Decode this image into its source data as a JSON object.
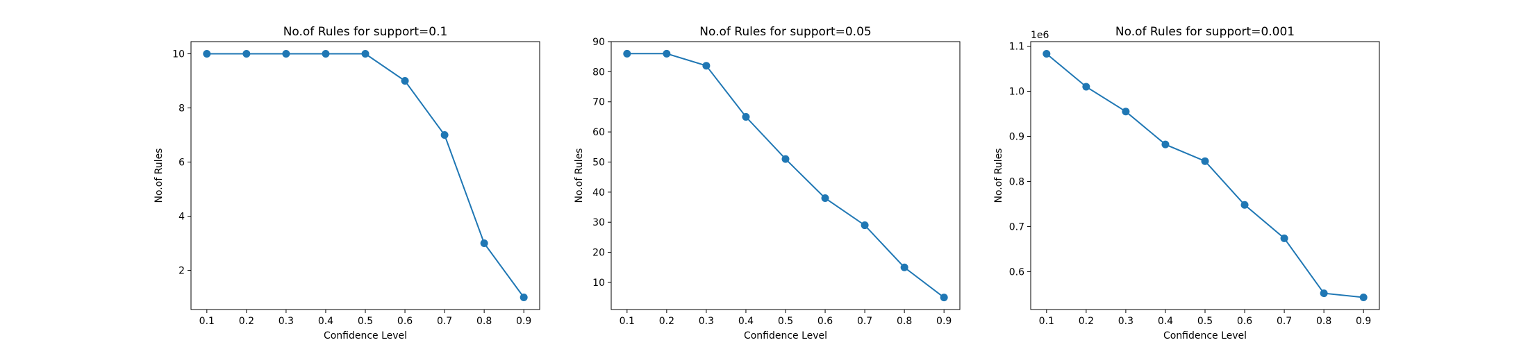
{
  "chart_data": [
    {
      "type": "line",
      "title": "No.of Rules for support=0.1",
      "xlabel": "Confidence Level",
      "ylabel": "No.of Rules",
      "x": [
        0.1,
        0.2,
        0.3,
        0.4,
        0.5,
        0.6,
        0.7,
        0.8,
        0.9
      ],
      "series": [
        {
          "values": [
            10,
            10,
            10,
            10,
            10,
            9,
            7,
            3,
            1
          ],
          "color": "#1f77b4",
          "marker": "circle"
        }
      ],
      "xticks": [
        0.1,
        0.2,
        0.3,
        0.4,
        0.5,
        0.6,
        0.7,
        0.8,
        0.9
      ],
      "xtick_labels": [
        "0.1",
        "0.2",
        "0.3",
        "0.4",
        "0.5",
        "0.6",
        "0.7",
        "0.8",
        "0.9"
      ],
      "yticks": [
        2,
        4,
        6,
        8,
        10
      ],
      "ytick_labels": [
        "2",
        "4",
        "6",
        "8",
        "10"
      ],
      "xlim": [
        0.06,
        0.94
      ],
      "ylim": [
        0.55,
        10.45
      ],
      "offset_text": "",
      "grid": false,
      "legend": "none"
    },
    {
      "type": "line",
      "title": "No.of Rules for support=0.05",
      "xlabel": "Confidence Level",
      "ylabel": "No.of Rules",
      "x": [
        0.1,
        0.2,
        0.3,
        0.4,
        0.5,
        0.6,
        0.7,
        0.8,
        0.9
      ],
      "series": [
        {
          "values": [
            86,
            86,
            82,
            65,
            51,
            38,
            29,
            15,
            5
          ],
          "color": "#1f77b4",
          "marker": "circle"
        }
      ],
      "xticks": [
        0.1,
        0.2,
        0.3,
        0.4,
        0.5,
        0.6,
        0.7,
        0.8,
        0.9
      ],
      "xtick_labels": [
        "0.1",
        "0.2",
        "0.3",
        "0.4",
        "0.5",
        "0.6",
        "0.7",
        "0.8",
        "0.9"
      ],
      "yticks": [
        10,
        20,
        30,
        40,
        50,
        60,
        70,
        80,
        90
      ],
      "ytick_labels": [
        "10",
        "20",
        "30",
        "40",
        "50",
        "60",
        "70",
        "80",
        "90"
      ],
      "xlim": [
        0.06,
        0.94
      ],
      "ylim": [
        1,
        90
      ],
      "offset_text": "",
      "grid": false,
      "legend": "none"
    },
    {
      "type": "line",
      "title": "No.of Rules for support=0.001",
      "xlabel": "Confidence Level",
      "ylabel": "No.of Rules",
      "x": [
        0.1,
        0.2,
        0.3,
        0.4,
        0.5,
        0.6,
        0.7,
        0.8,
        0.9
      ],
      "series": [
        {
          "values": [
            1083000,
            1010000,
            955000,
            882000,
            845000,
            748000,
            674000,
            552000,
            543000
          ],
          "color": "#1f77b4",
          "marker": "circle"
        }
      ],
      "xticks": [
        0.1,
        0.2,
        0.3,
        0.4,
        0.5,
        0.6,
        0.7,
        0.8,
        0.9
      ],
      "xtick_labels": [
        "0.1",
        "0.2",
        "0.3",
        "0.4",
        "0.5",
        "0.6",
        "0.7",
        "0.8",
        "0.9"
      ],
      "yticks": [
        600000,
        700000,
        800000,
        900000,
        1000000,
        1100000
      ],
      "ytick_labels": [
        "0.6",
        "0.7",
        "0.8",
        "0.9",
        "1.0",
        "1.1"
      ],
      "xlim": [
        0.06,
        0.94
      ],
      "ylim": [
        516000,
        1110000
      ],
      "offset_text": "1e6",
      "grid": false,
      "legend": "none"
    }
  ]
}
